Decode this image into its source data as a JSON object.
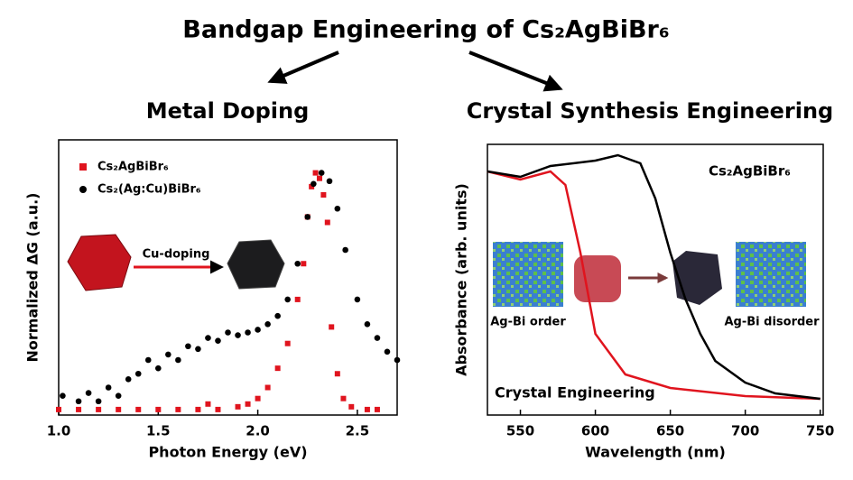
{
  "title": "Bandgap Engineering of Cs₂AgBiBr₆",
  "chart_data": [
    {
      "type": "scatter",
      "heading": "Metal Doping",
      "xlabel": "Photon Energy (eV)",
      "ylabel": "Normalized ΔG (a.u.)",
      "xlim": [
        1.0,
        2.7
      ],
      "ylim": [
        0,
        1
      ],
      "xticks": [
        {
          "value": 1.0,
          "label": "1.0"
        },
        1.5,
        {
          "value": 2.0,
          "label": "2.0"
        },
        2.5
      ],
      "annotations": [
        "Cu-doping"
      ],
      "series": [
        {
          "name": "Cs₂AgBiBr₆",
          "color": "#e0141e",
          "marker": "square",
          "x": [
            1.0,
            1.1,
            1.2,
            1.3,
            1.4,
            1.5,
            1.6,
            1.7,
            1.75,
            1.8,
            1.9,
            1.95,
            2.0,
            2.05,
            2.1,
            2.15,
            2.2,
            2.23,
            2.25,
            2.27,
            2.29,
            2.31,
            2.33,
            2.35,
            2.37,
            2.4,
            2.43,
            2.47,
            2.55,
            2.6
          ],
          "values": [
            0.02,
            0.02,
            0.02,
            0.02,
            0.02,
            0.02,
            0.02,
            0.02,
            0.04,
            0.02,
            0.03,
            0.04,
            0.06,
            0.1,
            0.17,
            0.26,
            0.42,
            0.55,
            0.72,
            0.83,
            0.88,
            0.86,
            0.8,
            0.7,
            0.32,
            0.15,
            0.06,
            0.03,
            0.02,
            0.02
          ]
        },
        {
          "name": "Cs₂(Ag:Cu)BiBr₆",
          "color": "#000000",
          "marker": "circle",
          "x": [
            1.02,
            1.1,
            1.15,
            1.2,
            1.25,
            1.3,
            1.35,
            1.4,
            1.45,
            1.5,
            1.55,
            1.6,
            1.65,
            1.7,
            1.75,
            1.8,
            1.85,
            1.9,
            1.95,
            2.0,
            2.05,
            2.1,
            2.15,
            2.2,
            2.25,
            2.28,
            2.32,
            2.36,
            2.4,
            2.44,
            2.5,
            2.55,
            2.6,
            2.65,
            2.7
          ],
          "values": [
            0.07,
            0.05,
            0.08,
            0.05,
            0.1,
            0.07,
            0.13,
            0.15,
            0.2,
            0.17,
            0.22,
            0.2,
            0.25,
            0.24,
            0.28,
            0.27,
            0.3,
            0.29,
            0.3,
            0.31,
            0.33,
            0.36,
            0.42,
            0.55,
            0.72,
            0.84,
            0.88,
            0.85,
            0.75,
            0.6,
            0.42,
            0.33,
            0.28,
            0.23,
            0.2
          ]
        }
      ]
    },
    {
      "type": "line",
      "heading": "Crystal Synthesis Engineering",
      "xlabel": "Wavelength (nm)",
      "ylabel": "Absorbance (arb. units)",
      "xlim": [
        528,
        752
      ],
      "ylim": [
        0,
        1
      ],
      "xticks": [
        550,
        600,
        650,
        700,
        750
      ],
      "annotations": [
        "Cs₂AgBiBr₆",
        "Ag-Bi order",
        "Ag-Bi disorder"
      ],
      "series": [
        {
          "name": "Crystal Engineering",
          "color": "#e0141e",
          "x": [
            528,
            550,
            570,
            580,
            590,
            600,
            620,
            650,
            700,
            750
          ],
          "values": [
            0.9,
            0.87,
            0.9,
            0.85,
            0.6,
            0.3,
            0.15,
            0.1,
            0.07,
            0.06
          ]
        },
        {
          "color": "#000000",
          "x": [
            528,
            550,
            570,
            600,
            615,
            630,
            640,
            650,
            660,
            670,
            680,
            700,
            720,
            750
          ],
          "values": [
            0.9,
            0.88,
            0.92,
            0.94,
            0.96,
            0.93,
            0.8,
            0.6,
            0.43,
            0.3,
            0.2,
            0.12,
            0.08,
            0.06
          ]
        }
      ]
    }
  ]
}
